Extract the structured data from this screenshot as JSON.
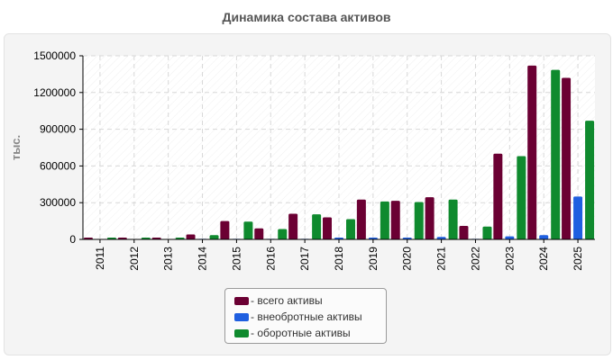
{
  "chart_data": {
    "type": "bar",
    "title": "Динамика состава активов",
    "xlabel": "",
    "ylabel": "тыс.",
    "ylim": [
      0,
      1500000
    ],
    "yticks": [
      "0",
      "300000",
      "600000",
      "900000",
      "1200000",
      "1500000"
    ],
    "yticks_values": [
      0,
      300000,
      600000,
      900000,
      1200000,
      1500000
    ],
    "grid": true,
    "legend_position": "bottom-center",
    "categories": [
      "2011",
      "2012",
      "2013",
      "2014",
      "2015",
      "2016",
      "2017",
      "2018",
      "2019",
      "2020",
      "2021",
      "2022",
      "2023",
      "2024",
      "2025"
    ],
    "series": [
      {
        "name": "- всего активы",
        "color": "#6b0033",
        "values": [
          15000,
          15000,
          15000,
          40000,
          150000,
          90000,
          210000,
          180000,
          325000,
          315000,
          345000,
          110000,
          700000,
          1420000,
          1320000
        ]
      },
      {
        "name": "- внеобротные активы",
        "color": "#1f5fe0",
        "values": [
          3000,
          3000,
          3000,
          5000,
          5000,
          5000,
          5000,
          15000,
          15000,
          15000,
          20000,
          5000,
          25000,
          35000,
          350000
        ]
      },
      {
        "name": "- оборотные активы",
        "color": "#0f8a2e",
        "values": [
          15000,
          15000,
          15000,
          35000,
          145000,
          85000,
          205000,
          165000,
          310000,
          305000,
          325000,
          105000,
          680000,
          1385000,
          970000
        ]
      }
    ]
  }
}
